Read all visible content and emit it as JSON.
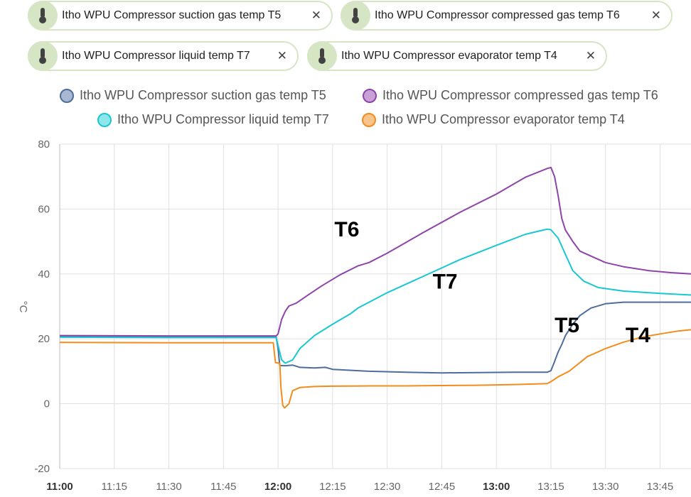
{
  "entity_chips": [
    {
      "label": "Itho WPU Compressor suction gas temp T5",
      "icon": "thermometer-icon",
      "close": "✕"
    },
    {
      "label": "Itho WPU Compressor compressed gas temp T6",
      "icon": "thermometer-icon",
      "close": "✕"
    },
    {
      "label": "Itho WPU Compressor liquid temp T7",
      "icon": "thermometer-icon",
      "close": "✕"
    },
    {
      "label": "Itho WPU Compressor evaporator temp T4",
      "icon": "thermometer-icon",
      "close": "✕"
    }
  ],
  "legend": [
    {
      "label": "Itho WPU Compressor suction gas temp T5",
      "color": "#4f6d9c",
      "fill": "#a8b8d2"
    },
    {
      "label": "Itho WPU Compressor compressed gas temp T6",
      "color": "#8e44a8",
      "fill": "#caa0d9"
    },
    {
      "label": "Itho WPU Compressor liquid temp T7",
      "color": "#17c8d0",
      "fill": "#8de6ea"
    },
    {
      "label": "Itho WPU Compressor evaporator temp T4",
      "color": "#f28c1c",
      "fill": "#f8c48c"
    }
  ],
  "chart_data": {
    "type": "line",
    "title": "",
    "xlabel": "",
    "ylabel": "°C",
    "ylim": [
      -20,
      80
    ],
    "yticks": [
      80,
      60,
      40,
      20,
      0,
      -20
    ],
    "xticks": [
      {
        "label": "11:00",
        "minutes": 0,
        "bold": true
      },
      {
        "label": "11:15",
        "minutes": 15,
        "bold": false
      },
      {
        "label": "11:30",
        "minutes": 30,
        "bold": false
      },
      {
        "label": "11:45",
        "minutes": 45,
        "bold": false
      },
      {
        "label": "12:00",
        "minutes": 60,
        "bold": true
      },
      {
        "label": "12:15",
        "minutes": 75,
        "bold": false
      },
      {
        "label": "12:30",
        "minutes": 90,
        "bold": false
      },
      {
        "label": "12:45",
        "minutes": 105,
        "bold": false
      },
      {
        "label": "13:00",
        "minutes": 120,
        "bold": true
      },
      {
        "label": "13:15",
        "minutes": 135,
        "bold": false
      },
      {
        "label": "13:30",
        "minutes": 150,
        "bold": false
      },
      {
        "label": "13:45",
        "minutes": 165,
        "bold": false
      }
    ],
    "x_unit": "minutes after 11:00",
    "xlim": [
      0,
      173.5
    ],
    "series": [
      {
        "name": "Itho WPU Compressor suction gas temp T5",
        "color": "#4f6d9c",
        "points": [
          [
            0,
            20.7
          ],
          [
            30,
            20.6
          ],
          [
            59.5,
            20.6
          ],
          [
            60,
            17
          ],
          [
            60.5,
            11.8
          ],
          [
            62,
            11.7
          ],
          [
            64,
            11.9
          ],
          [
            66,
            11.2
          ],
          [
            70,
            11.0
          ],
          [
            73,
            11.2
          ],
          [
            75,
            10.6
          ],
          [
            85,
            10.0
          ],
          [
            95,
            9.7
          ],
          [
            105,
            9.5
          ],
          [
            115,
            9.6
          ],
          [
            125,
            9.7
          ],
          [
            134,
            9.7
          ],
          [
            135,
            10.2
          ],
          [
            136,
            13
          ],
          [
            137,
            16
          ],
          [
            138,
            18.3
          ],
          [
            139,
            21
          ],
          [
            141,
            24.5
          ],
          [
            143,
            27.2
          ],
          [
            146,
            29.5
          ],
          [
            150,
            30.8
          ],
          [
            155,
            31.3
          ],
          [
            173.5,
            31.3
          ]
        ]
      },
      {
        "name": "Itho WPU Compressor compressed gas temp T6",
        "color": "#8e44a8",
        "points": [
          [
            0,
            21.0
          ],
          [
            30,
            20.9
          ],
          [
            59.5,
            20.9
          ],
          [
            60,
            21.5
          ],
          [
            61,
            26
          ],
          [
            62,
            28.5
          ],
          [
            63,
            30.1
          ],
          [
            65,
            31.0
          ],
          [
            68,
            33.3
          ],
          [
            72,
            36.3
          ],
          [
            77,
            39.7
          ],
          [
            82,
            42.5
          ],
          [
            85,
            43.5
          ],
          [
            90,
            46.4
          ],
          [
            100,
            52.8
          ],
          [
            110,
            59.0
          ],
          [
            120,
            64.6
          ],
          [
            128,
            69.8
          ],
          [
            134,
            72.5
          ],
          [
            135,
            72.8
          ],
          [
            136,
            70
          ],
          [
            137,
            64
          ],
          [
            138,
            57
          ],
          [
            139,
            53.5
          ],
          [
            141,
            50
          ],
          [
            143,
            47
          ],
          [
            146,
            45.5
          ],
          [
            150,
            43.5
          ],
          [
            155,
            42.2
          ],
          [
            162,
            41.0
          ],
          [
            168,
            40.4
          ],
          [
            173.5,
            40.0
          ]
        ]
      },
      {
        "name": "Itho WPU Compressor liquid temp T7",
        "color": "#17c8d0",
        "points": [
          [
            0,
            20.5
          ],
          [
            30,
            20.4
          ],
          [
            59.5,
            20.4
          ],
          [
            60,
            18
          ],
          [
            61,
            13.5
          ],
          [
            62,
            12.5
          ],
          [
            64,
            13.5
          ],
          [
            66,
            17
          ],
          [
            70,
            21
          ],
          [
            75,
            24.5
          ],
          [
            80,
            27.8
          ],
          [
            82,
            29.5
          ],
          [
            90,
            34.2
          ],
          [
            100,
            39.3
          ],
          [
            110,
            44.4
          ],
          [
            120,
            48.8
          ],
          [
            128,
            52.2
          ],
          [
            134,
            53.8
          ],
          [
            135,
            53.6
          ],
          [
            137,
            51
          ],
          [
            139,
            46
          ],
          [
            141,
            41
          ],
          [
            144,
            37.8
          ],
          [
            148,
            35.8
          ],
          [
            155,
            34.7
          ],
          [
            165,
            34.0
          ],
          [
            173.5,
            33.5
          ]
        ]
      },
      {
        "name": "Itho WPU Compressor evaporator temp T4",
        "color": "#f28c1c",
        "points": [
          [
            0,
            18.9
          ],
          [
            30,
            18.8
          ],
          [
            58.7,
            18.8
          ],
          [
            59.3,
            12.7
          ],
          [
            60.5,
            12.4
          ],
          [
            60.8,
            5
          ],
          [
            61.3,
            -0.5
          ],
          [
            61.8,
            -1.3
          ],
          [
            63,
            0
          ],
          [
            64,
            4
          ],
          [
            66,
            5.0
          ],
          [
            70,
            5.3
          ],
          [
            75,
            5.4
          ],
          [
            85,
            5.5
          ],
          [
            95,
            5.5
          ],
          [
            105,
            5.6
          ],
          [
            115,
            5.7
          ],
          [
            125,
            5.9
          ],
          [
            134,
            6.2
          ],
          [
            135,
            6.8
          ],
          [
            137,
            8.3
          ],
          [
            140,
            10
          ],
          [
            143,
            12.7
          ],
          [
            145,
            14.5
          ],
          [
            148,
            16.0
          ],
          [
            150,
            17.0
          ],
          [
            155,
            19.0
          ],
          [
            160,
            20.5
          ],
          [
            165,
            21.5
          ],
          [
            170,
            22.4
          ],
          [
            173.5,
            22.8
          ]
        ]
      }
    ],
    "annotations": [
      {
        "text": "T6",
        "x": 75.5,
        "y": 51.5
      },
      {
        "text": "T7",
        "x": 102.5,
        "y": 35.5
      },
      {
        "text": "T5",
        "x": 136,
        "y": 22
      },
      {
        "text": "T4",
        "x": 155.5,
        "y": 19
      }
    ]
  }
}
